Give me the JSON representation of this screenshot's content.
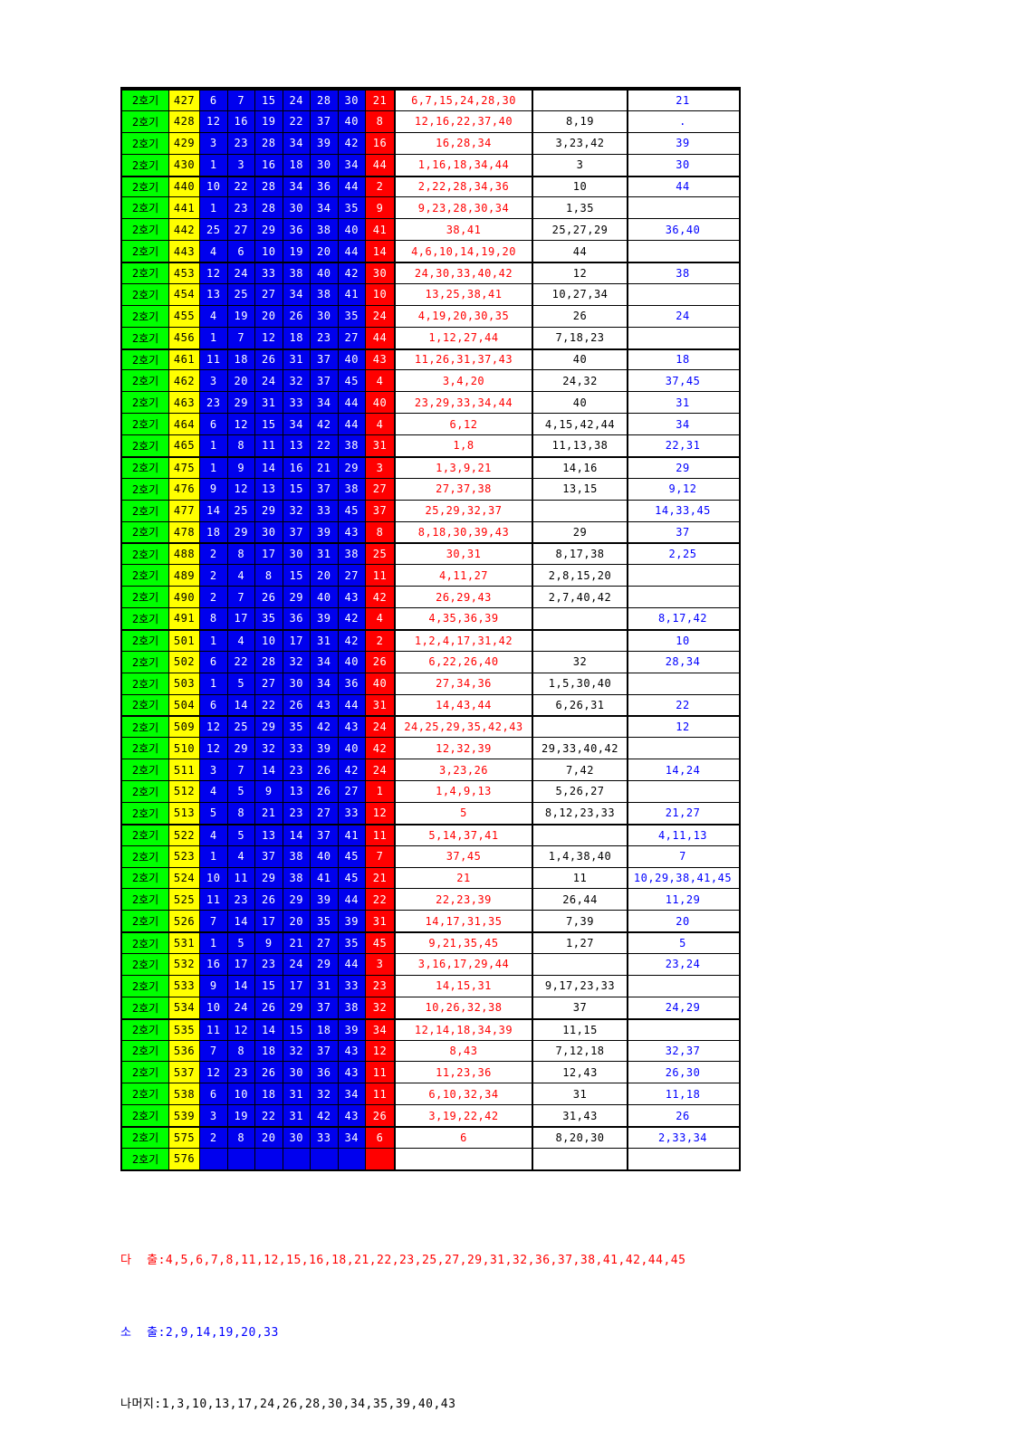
{
  "machine_label": "2호기",
  "colors": {
    "machine_bg": "#00FF00",
    "round_bg": "#FFFF00",
    "number_bg": "#0000EE",
    "bonus_bg": "#FF0000",
    "hit_text": "#FF0000",
    "mid_text": "#000000",
    "blue_text": "#0000FF",
    "border": "#000000"
  },
  "table": {
    "rows": [
      {
        "round": "427",
        "numbers": [
          "6",
          "7",
          "15",
          "24",
          "28",
          "30"
        ],
        "bonus": "21",
        "hit": "6,7,15,24,28,30",
        "mid": "",
        "blue": "21",
        "group_start": true
      },
      {
        "round": "428",
        "numbers": [
          "12",
          "16",
          "19",
          "22",
          "37",
          "40"
        ],
        "bonus": "8",
        "hit": "12,16,22,37,40",
        "mid": "8,19",
        "blue": ".",
        "group_start": false
      },
      {
        "round": "429",
        "numbers": [
          "3",
          "23",
          "28",
          "34",
          "39",
          "42"
        ],
        "bonus": "16",
        "hit": "16,28,34",
        "mid": "3,23,42",
        "blue": "39",
        "group_start": false
      },
      {
        "round": "430",
        "numbers": [
          "1",
          "3",
          "16",
          "18",
          "30",
          "34"
        ],
        "bonus": "44",
        "hit": "1,16,18,34,44",
        "mid": "3",
        "blue": "30",
        "group_start": false
      },
      {
        "round": "440",
        "numbers": [
          "10",
          "22",
          "28",
          "34",
          "36",
          "44"
        ],
        "bonus": "2",
        "hit": "2,22,28,34,36",
        "mid": "10",
        "blue": "44",
        "group_start": true
      },
      {
        "round": "441",
        "numbers": [
          "1",
          "23",
          "28",
          "30",
          "34",
          "35"
        ],
        "bonus": "9",
        "hit": "9,23,28,30,34",
        "mid": "1,35",
        "blue": "",
        "group_start": false
      },
      {
        "round": "442",
        "numbers": [
          "25",
          "27",
          "29",
          "36",
          "38",
          "40"
        ],
        "bonus": "41",
        "hit": "38,41",
        "mid": "25,27,29",
        "blue": "36,40",
        "group_start": false
      },
      {
        "round": "443",
        "numbers": [
          "4",
          "6",
          "10",
          "19",
          "20",
          "44"
        ],
        "bonus": "14",
        "hit": "4,6,10,14,19,20",
        "mid": "44",
        "blue": "",
        "group_start": false
      },
      {
        "round": "453",
        "numbers": [
          "12",
          "24",
          "33",
          "38",
          "40",
          "42"
        ],
        "bonus": "30",
        "hit": "24,30,33,40,42",
        "mid": "12",
        "blue": "38",
        "group_start": true
      },
      {
        "round": "454",
        "numbers": [
          "13",
          "25",
          "27",
          "34",
          "38",
          "41"
        ],
        "bonus": "10",
        "hit": "13,25,38,41",
        "mid": "10,27,34",
        "blue": "",
        "group_start": false
      },
      {
        "round": "455",
        "numbers": [
          "4",
          "19",
          "20",
          "26",
          "30",
          "35"
        ],
        "bonus": "24",
        "hit": "4,19,20,30,35",
        "mid": "26",
        "blue": "24",
        "group_start": false
      },
      {
        "round": "456",
        "numbers": [
          "1",
          "7",
          "12",
          "18",
          "23",
          "27"
        ],
        "bonus": "44",
        "hit": "1,12,27,44",
        "mid": "7,18,23",
        "blue": "",
        "group_start": false
      },
      {
        "round": "461",
        "numbers": [
          "11",
          "18",
          "26",
          "31",
          "37",
          "40"
        ],
        "bonus": "43",
        "hit": "11,26,31,37,43",
        "mid": "40",
        "blue": "18",
        "group_start": true
      },
      {
        "round": "462",
        "numbers": [
          "3",
          "20",
          "24",
          "32",
          "37",
          "45"
        ],
        "bonus": "4",
        "hit": "3,4,20",
        "mid": "24,32",
        "blue": "37,45",
        "group_start": false
      },
      {
        "round": "463",
        "numbers": [
          "23",
          "29",
          "31",
          "33",
          "34",
          "44"
        ],
        "bonus": "40",
        "hit": "23,29,33,34,44",
        "mid": "40",
        "blue": "31",
        "group_start": false
      },
      {
        "round": "464",
        "numbers": [
          "6",
          "12",
          "15",
          "34",
          "42",
          "44"
        ],
        "bonus": "4",
        "hit": "6,12",
        "mid": "4,15,42,44",
        "blue": "34",
        "group_start": false
      },
      {
        "round": "465",
        "numbers": [
          "1",
          "8",
          "11",
          "13",
          "22",
          "38"
        ],
        "bonus": "31",
        "hit": "1,8",
        "mid": "11,13,38",
        "blue": "22,31",
        "group_start": false
      },
      {
        "round": "475",
        "numbers": [
          "1",
          "9",
          "14",
          "16",
          "21",
          "29"
        ],
        "bonus": "3",
        "hit": "1,3,9,21",
        "mid": "14,16",
        "blue": "29",
        "group_start": true
      },
      {
        "round": "476",
        "numbers": [
          "9",
          "12",
          "13",
          "15",
          "37",
          "38"
        ],
        "bonus": "27",
        "hit": "27,37,38",
        "mid": "13,15",
        "blue": "9,12",
        "group_start": false
      },
      {
        "round": "477",
        "numbers": [
          "14",
          "25",
          "29",
          "32",
          "33",
          "45"
        ],
        "bonus": "37",
        "hit": "25,29,32,37",
        "mid": "",
        "blue": "14,33,45",
        "group_start": false
      },
      {
        "round": "478",
        "numbers": [
          "18",
          "29",
          "30",
          "37",
          "39",
          "43"
        ],
        "bonus": "8",
        "hit": "8,18,30,39,43",
        "mid": "29",
        "blue": "37",
        "group_start": false
      },
      {
        "round": "488",
        "numbers": [
          "2",
          "8",
          "17",
          "30",
          "31",
          "38"
        ],
        "bonus": "25",
        "hit": "30,31",
        "mid": "8,17,38",
        "blue": "2,25",
        "group_start": true
      },
      {
        "round": "489",
        "numbers": [
          "2",
          "4",
          "8",
          "15",
          "20",
          "27"
        ],
        "bonus": "11",
        "hit": "4,11,27",
        "mid": "2,8,15,20",
        "blue": "",
        "group_start": false
      },
      {
        "round": "490",
        "numbers": [
          "2",
          "7",
          "26",
          "29",
          "40",
          "43"
        ],
        "bonus": "42",
        "hit": "26,29,43",
        "mid": "2,7,40,42",
        "blue": "",
        "group_start": false
      },
      {
        "round": "491",
        "numbers": [
          "8",
          "17",
          "35",
          "36",
          "39",
          "42"
        ],
        "bonus": "4",
        "hit": "4,35,36,39",
        "mid": "",
        "blue": "8,17,42",
        "group_start": false
      },
      {
        "round": "501",
        "numbers": [
          "1",
          "4",
          "10",
          "17",
          "31",
          "42"
        ],
        "bonus": "2",
        "hit": "1,2,4,17,31,42",
        "mid": "",
        "blue": "10",
        "group_start": true
      },
      {
        "round": "502",
        "numbers": [
          "6",
          "22",
          "28",
          "32",
          "34",
          "40"
        ],
        "bonus": "26",
        "hit": "6,22,26,40",
        "mid": "32",
        "blue": "28,34",
        "group_start": false
      },
      {
        "round": "503",
        "numbers": [
          "1",
          "5",
          "27",
          "30",
          "34",
          "36"
        ],
        "bonus": "40",
        "hit": "27,34,36",
        "mid": "1,5,30,40",
        "blue": "",
        "group_start": false
      },
      {
        "round": "504",
        "numbers": [
          "6",
          "14",
          "22",
          "26",
          "43",
          "44"
        ],
        "bonus": "31",
        "hit": "14,43,44",
        "mid": "6,26,31",
        "blue": "22",
        "group_start": false
      },
      {
        "round": "509",
        "numbers": [
          "12",
          "25",
          "29",
          "35",
          "42",
          "43"
        ],
        "bonus": "24",
        "hit": "24,25,29,35,42,43",
        "mid": "",
        "blue": "12",
        "group_start": true
      },
      {
        "round": "510",
        "numbers": [
          "12",
          "29",
          "32",
          "33",
          "39",
          "40"
        ],
        "bonus": "42",
        "hit": "12,32,39",
        "mid": "29,33,40,42",
        "blue": "",
        "group_start": false
      },
      {
        "round": "511",
        "numbers": [
          "3",
          "7",
          "14",
          "23",
          "26",
          "42"
        ],
        "bonus": "24",
        "hit": "3,23,26",
        "mid": "7,42",
        "blue": "14,24",
        "group_start": false
      },
      {
        "round": "512",
        "numbers": [
          "4",
          "5",
          "9",
          "13",
          "26",
          "27"
        ],
        "bonus": "1",
        "hit": "1,4,9,13",
        "mid": "5,26,27",
        "blue": "",
        "group_start": false
      },
      {
        "round": "513",
        "numbers": [
          "5",
          "8",
          "21",
          "23",
          "27",
          "33"
        ],
        "bonus": "12",
        "hit": "5",
        "mid": "8,12,23,33",
        "blue": "21,27",
        "group_start": false
      },
      {
        "round": "522",
        "numbers": [
          "4",
          "5",
          "13",
          "14",
          "37",
          "41"
        ],
        "bonus": "11",
        "hit": "5,14,37,41",
        "mid": "",
        "blue": "4,11,13",
        "group_start": true
      },
      {
        "round": "523",
        "numbers": [
          "1",
          "4",
          "37",
          "38",
          "40",
          "45"
        ],
        "bonus": "7",
        "hit": "37,45",
        "mid": "1,4,38,40",
        "blue": "7",
        "group_start": false
      },
      {
        "round": "524",
        "numbers": [
          "10",
          "11",
          "29",
          "38",
          "41",
          "45"
        ],
        "bonus": "21",
        "hit": "21",
        "mid": "11",
        "blue": "10,29,38,41,45",
        "group_start": false
      },
      {
        "round": "525",
        "numbers": [
          "11",
          "23",
          "26",
          "29",
          "39",
          "44"
        ],
        "bonus": "22",
        "hit": "22,23,39",
        "mid": "26,44",
        "blue": "11,29",
        "group_start": false
      },
      {
        "round": "526",
        "numbers": [
          "7",
          "14",
          "17",
          "20",
          "35",
          "39"
        ],
        "bonus": "31",
        "hit": "14,17,31,35",
        "mid": "7,39",
        "blue": "20",
        "group_start": false
      },
      {
        "round": "531",
        "numbers": [
          "1",
          "5",
          "9",
          "21",
          "27",
          "35"
        ],
        "bonus": "45",
        "hit": "9,21,35,45",
        "mid": "1,27",
        "blue": "5",
        "group_start": true
      },
      {
        "round": "532",
        "numbers": [
          "16",
          "17",
          "23",
          "24",
          "29",
          "44"
        ],
        "bonus": "3",
        "hit": "3,16,17,29,44",
        "mid": "",
        "blue": "23,24",
        "group_start": false
      },
      {
        "round": "533",
        "numbers": [
          "9",
          "14",
          "15",
          "17",
          "31",
          "33"
        ],
        "bonus": "23",
        "hit": "14,15,31",
        "mid": "9,17,23,33",
        "blue": "",
        "group_start": false
      },
      {
        "round": "534",
        "numbers": [
          "10",
          "24",
          "26",
          "29",
          "37",
          "38"
        ],
        "bonus": "32",
        "hit": "10,26,32,38",
        "mid": "37",
        "blue": "24,29",
        "group_start": false
      },
      {
        "round": "535",
        "numbers": [
          "11",
          "12",
          "14",
          "15",
          "18",
          "39"
        ],
        "bonus": "34",
        "hit": "12,14,18,34,39",
        "mid": "11,15",
        "blue": "",
        "group_start": true
      },
      {
        "round": "536",
        "numbers": [
          "7",
          "8",
          "18",
          "32",
          "37",
          "43"
        ],
        "bonus": "12",
        "hit": "8,43",
        "mid": "7,12,18",
        "blue": "32,37",
        "group_start": false
      },
      {
        "round": "537",
        "numbers": [
          "12",
          "23",
          "26",
          "30",
          "36",
          "43"
        ],
        "bonus": "11",
        "hit": "11,23,36",
        "mid": "12,43",
        "blue": "26,30",
        "group_start": false
      },
      {
        "round": "538",
        "numbers": [
          "6",
          "10",
          "18",
          "31",
          "32",
          "34"
        ],
        "bonus": "11",
        "hit": "6,10,32,34",
        "mid": "31",
        "blue": "11,18",
        "group_start": false
      },
      {
        "round": "539",
        "numbers": [
          "3",
          "19",
          "22",
          "31",
          "42",
          "43"
        ],
        "bonus": "26",
        "hit": "3,19,22,42",
        "mid": "31,43",
        "blue": "26",
        "group_start": false
      },
      {
        "round": "575",
        "numbers": [
          "2",
          "8",
          "20",
          "30",
          "33",
          "34"
        ],
        "bonus": "6",
        "hit": "6",
        "mid": "8,20,30",
        "blue": "2,33,34",
        "group_start": true
      },
      {
        "round": "576",
        "numbers": [
          "",
          "",
          "",
          "",
          "",
          ""
        ],
        "bonus": "",
        "hit": "",
        "mid": "",
        "blue": "",
        "group_start": false
      }
    ]
  },
  "summary": {
    "many_line": "다  출:4,5,6,7,8,11,12,15,16,18,21,22,23,25,27,29,31,32,36,37,38,41,42,44,45",
    "few_line": "소  출:2,9,14,19,20,33",
    "rest_line": "나머지:1,3,10,13,17,24,26,28,30,34,35,39,40,43"
  }
}
